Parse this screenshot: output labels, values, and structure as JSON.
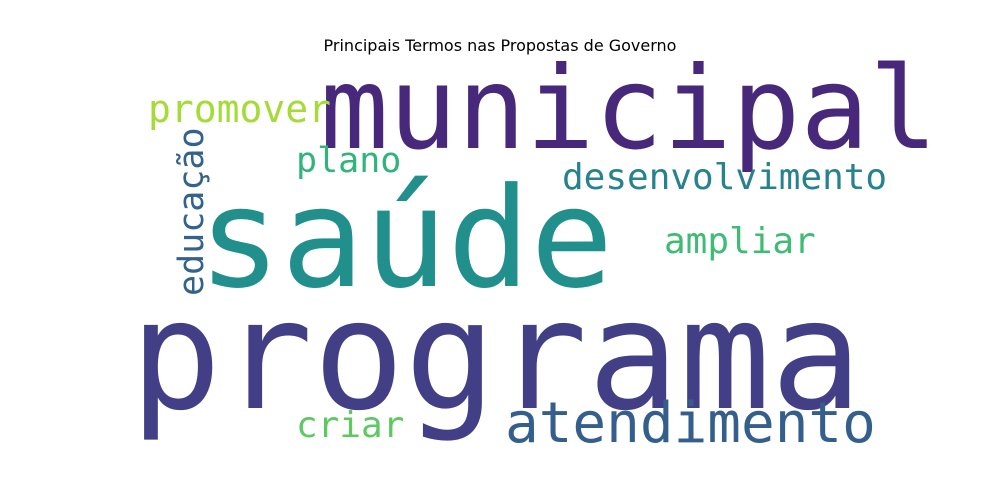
{
  "title": "Principais Termos nas Propostas de Governo",
  "words": [
    {
      "id": "programa",
      "text": "programa",
      "color": "#433f86"
    },
    {
      "id": "saude",
      "text": "saúde",
      "color": "#21908d"
    },
    {
      "id": "municipal",
      "text": "municipal",
      "color": "#48287a"
    },
    {
      "id": "atendimento",
      "text": "atendimento",
      "color": "#345f8d"
    },
    {
      "id": "desenvolvimento",
      "text": "desenvolvimento",
      "color": "#26828e"
    },
    {
      "id": "promover",
      "text": "promover",
      "color": "#a5db36"
    },
    {
      "id": "plano",
      "text": "plano",
      "color": "#2fb47c"
    },
    {
      "id": "ampliar",
      "text": "ampliar",
      "color": "#3fbc73"
    },
    {
      "id": "criar",
      "text": "criar",
      "color": "#5ec962"
    },
    {
      "id": "educacao",
      "text": "educação",
      "color": "#33628d"
    }
  ]
}
